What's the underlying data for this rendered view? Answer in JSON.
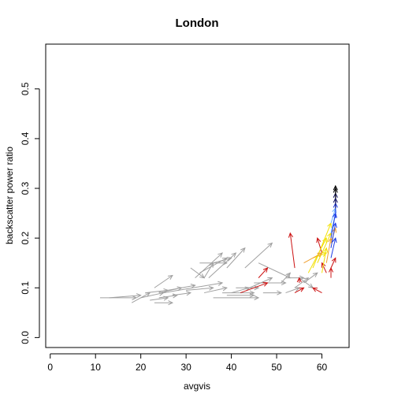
{
  "chart_data": {
    "type": "scatter",
    "style": "arrows",
    "title": "London",
    "xlabel": "avgvis",
    "ylabel": "backscatter power ratio",
    "xlim": [
      -1,
      66
    ],
    "ylim": [
      -0.02,
      0.59
    ],
    "xticks": [
      "0",
      "10",
      "20",
      "30",
      "40",
      "50",
      "60"
    ],
    "yticks": [
      "0.0",
      "0.1",
      "0.2",
      "0.3",
      "0.4",
      "0.5"
    ],
    "grid": false,
    "colors": {
      "gray": "#a0a0a0",
      "red": "#cc1111",
      "yellow": "#f2e000",
      "orange": "#f0a030",
      "lightblue": "#6ab0ff",
      "blue": "#1f3de6",
      "darkblue": "#101060",
      "black": "#000000"
    },
    "arrows": [
      {
        "x0": 11,
        "y0": 0.08,
        "x1": 19,
        "y1": 0.08,
        "color": "gray"
      },
      {
        "x0": 13,
        "y0": 0.08,
        "x1": 20,
        "y1": 0.085,
        "color": "gray"
      },
      {
        "x0": 18,
        "y0": 0.07,
        "x1": 22,
        "y1": 0.09,
        "color": "gray"
      },
      {
        "x0": 20,
        "y0": 0.08,
        "x1": 25,
        "y1": 0.09,
        "color": "gray"
      },
      {
        "x0": 21,
        "y0": 0.09,
        "x1": 26,
        "y1": 0.095,
        "color": "gray"
      },
      {
        "x0": 22,
        "y0": 0.075,
        "x1": 26,
        "y1": 0.08,
        "color": "gray"
      },
      {
        "x0": 23,
        "y0": 0.07,
        "x1": 27,
        "y1": 0.07,
        "color": "gray"
      },
      {
        "x0": 24,
        "y0": 0.08,
        "x1": 28,
        "y1": 0.085,
        "color": "gray"
      },
      {
        "x0": 23,
        "y0": 0.1,
        "x1": 27,
        "y1": 0.125,
        "color": "gray"
      },
      {
        "x0": 24,
        "y0": 0.09,
        "x1": 29,
        "y1": 0.1,
        "color": "gray"
      },
      {
        "x0": 25,
        "y0": 0.09,
        "x1": 38,
        "y1": 0.11,
        "color": "gray"
      },
      {
        "x0": 26,
        "y0": 0.095,
        "x1": 32,
        "y1": 0.105,
        "color": "gray"
      },
      {
        "x0": 27,
        "y0": 0.085,
        "x1": 31,
        "y1": 0.09,
        "color": "gray"
      },
      {
        "x0": 30,
        "y0": 0.095,
        "x1": 36,
        "y1": 0.1,
        "color": "gray"
      },
      {
        "x0": 31,
        "y0": 0.14,
        "x1": 34,
        "y1": 0.12,
        "color": "gray"
      },
      {
        "x0": 32,
        "y0": 0.12,
        "x1": 38,
        "y1": 0.17,
        "color": "gray"
      },
      {
        "x0": 33,
        "y0": 0.13,
        "x1": 39,
        "y1": 0.16,
        "color": "gray"
      },
      {
        "x0": 34,
        "y0": 0.12,
        "x1": 36,
        "y1": 0.15,
        "color": "gray"
      },
      {
        "x0": 33,
        "y0": 0.15,
        "x1": 39,
        "y1": 0.15,
        "color": "gray"
      },
      {
        "x0": 35,
        "y0": 0.12,
        "x1": 41,
        "y1": 0.17,
        "color": "gray"
      },
      {
        "x0": 36,
        "y0": 0.15,
        "x1": 40,
        "y1": 0.16,
        "color": "gray"
      },
      {
        "x0": 34,
        "y0": 0.09,
        "x1": 39,
        "y1": 0.1,
        "color": "gray"
      },
      {
        "x0": 38,
        "y0": 0.09,
        "x1": 45,
        "y1": 0.09,
        "color": "gray"
      },
      {
        "x0": 40,
        "y0": 0.09,
        "x1": 44,
        "y1": 0.1,
        "color": "gray"
      },
      {
        "x0": 41,
        "y0": 0.1,
        "x1": 46,
        "y1": 0.1,
        "color": "gray"
      },
      {
        "x0": 39,
        "y0": 0.14,
        "x1": 43,
        "y1": 0.18,
        "color": "gray"
      },
      {
        "x0": 43,
        "y0": 0.14,
        "x1": 49,
        "y1": 0.19,
        "color": "gray"
      },
      {
        "x0": 36,
        "y0": 0.08,
        "x1": 46,
        "y1": 0.08,
        "color": "gray"
      },
      {
        "x0": 39,
        "y0": 0.085,
        "x1": 45,
        "y1": 0.085,
        "color": "gray"
      },
      {
        "x0": 45,
        "y0": 0.11,
        "x1": 52,
        "y1": 0.11,
        "color": "gray"
      },
      {
        "x0": 46,
        "y0": 0.15,
        "x1": 53,
        "y1": 0.12,
        "color": "gray"
      },
      {
        "x0": 44,
        "y0": 0.1,
        "x1": 49,
        "y1": 0.12,
        "color": "gray"
      },
      {
        "x0": 47,
        "y0": 0.09,
        "x1": 51,
        "y1": 0.09,
        "color": "gray"
      },
      {
        "x0": 51,
        "y0": 0.11,
        "x1": 53,
        "y1": 0.13,
        "color": "gray"
      },
      {
        "x0": 52,
        "y0": 0.09,
        "x1": 55,
        "y1": 0.1,
        "color": "gray"
      },
      {
        "x0": 53,
        "y0": 0.12,
        "x1": 56,
        "y1": 0.12,
        "color": "gray"
      },
      {
        "x0": 54,
        "y0": 0.1,
        "x1": 57,
        "y1": 0.12,
        "color": "gray"
      },
      {
        "x0": 55,
        "y0": 0.12,
        "x1": 58,
        "y1": 0.1,
        "color": "gray"
      },
      {
        "x0": 56,
        "y0": 0.11,
        "x1": 59,
        "y1": 0.13,
        "color": "gray"
      },
      {
        "x0": 42,
        "y0": 0.09,
        "x1": 48,
        "y1": 0.11,
        "color": "red"
      },
      {
        "x0": 46,
        "y0": 0.12,
        "x1": 48,
        "y1": 0.14,
        "color": "red"
      },
      {
        "x0": 54,
        "y0": 0.14,
        "x1": 53,
        "y1": 0.21,
        "color": "red"
      },
      {
        "x0": 54,
        "y0": 0.09,
        "x1": 56,
        "y1": 0.1,
        "color": "red"
      },
      {
        "x0": 55,
        "y0": 0.11,
        "x1": 55,
        "y1": 0.12,
        "color": "red"
      },
      {
        "x0": 60,
        "y0": 0.09,
        "x1": 58,
        "y1": 0.1,
        "color": "red"
      },
      {
        "x0": 61,
        "y0": 0.13,
        "x1": 60,
        "y1": 0.15,
        "color": "red"
      },
      {
        "x0": 60,
        "y0": 0.17,
        "x1": 59,
        "y1": 0.2,
        "color": "red"
      },
      {
        "x0": 62,
        "y0": 0.12,
        "x1": 62,
        "y1": 0.14,
        "color": "red"
      },
      {
        "x0": 62,
        "y0": 0.14,
        "x1": 63,
        "y1": 0.16,
        "color": "red"
      },
      {
        "x0": 57,
        "y0": 0.13,
        "x1": 61,
        "y1": 0.2,
        "color": "yellow"
      },
      {
        "x0": 58,
        "y0": 0.14,
        "x1": 62,
        "y1": 0.23,
        "color": "yellow"
      },
      {
        "x0": 59,
        "y0": 0.15,
        "x1": 62,
        "y1": 0.21,
        "color": "yellow"
      },
      {
        "x0": 60,
        "y0": 0.13,
        "x1": 61,
        "y1": 0.18,
        "color": "yellow"
      },
      {
        "x0": 58,
        "y0": 0.16,
        "x1": 61,
        "y1": 0.17,
        "color": "yellow"
      },
      {
        "x0": 56,
        "y0": 0.15,
        "x1": 60,
        "y1": 0.17,
        "color": "orange"
      },
      {
        "x0": 61,
        "y0": 0.15,
        "x1": 62,
        "y1": 0.2,
        "color": "orange"
      },
      {
        "x0": 62,
        "y0": 0.19,
        "x1": 63,
        "y1": 0.22,
        "color": "orange"
      },
      {
        "x0": 62,
        "y0": 0.23,
        "x1": 63,
        "y1": 0.26,
        "color": "lightblue"
      },
      {
        "x0": 62,
        "y0": 0.21,
        "x1": 63,
        "y1": 0.25,
        "color": "lightblue"
      },
      {
        "x0": 62,
        "y0": 0.16,
        "x1": 63,
        "y1": 0.2,
        "color": "blue"
      },
      {
        "x0": 62,
        "y0": 0.18,
        "x1": 63,
        "y1": 0.23,
        "color": "blue"
      },
      {
        "x0": 62,
        "y0": 0.2,
        "x1": 63,
        "y1": 0.25,
        "color": "blue"
      },
      {
        "x0": 63,
        "y0": 0.24,
        "x1": 63,
        "y1": 0.27,
        "color": "blue"
      },
      {
        "x0": 63,
        "y0": 0.26,
        "x1": 63,
        "y1": 0.28,
        "color": "darkblue"
      },
      {
        "x0": 63,
        "y0": 0.27,
        "x1": 63,
        "y1": 0.29,
        "color": "darkblue"
      },
      {
        "x0": 63,
        "y0": 0.28,
        "x1": 63,
        "y1": 0.3,
        "color": "black"
      },
      {
        "x0": 63,
        "y0": 0.29,
        "x1": 63,
        "y1": 0.305,
        "color": "black"
      }
    ]
  }
}
